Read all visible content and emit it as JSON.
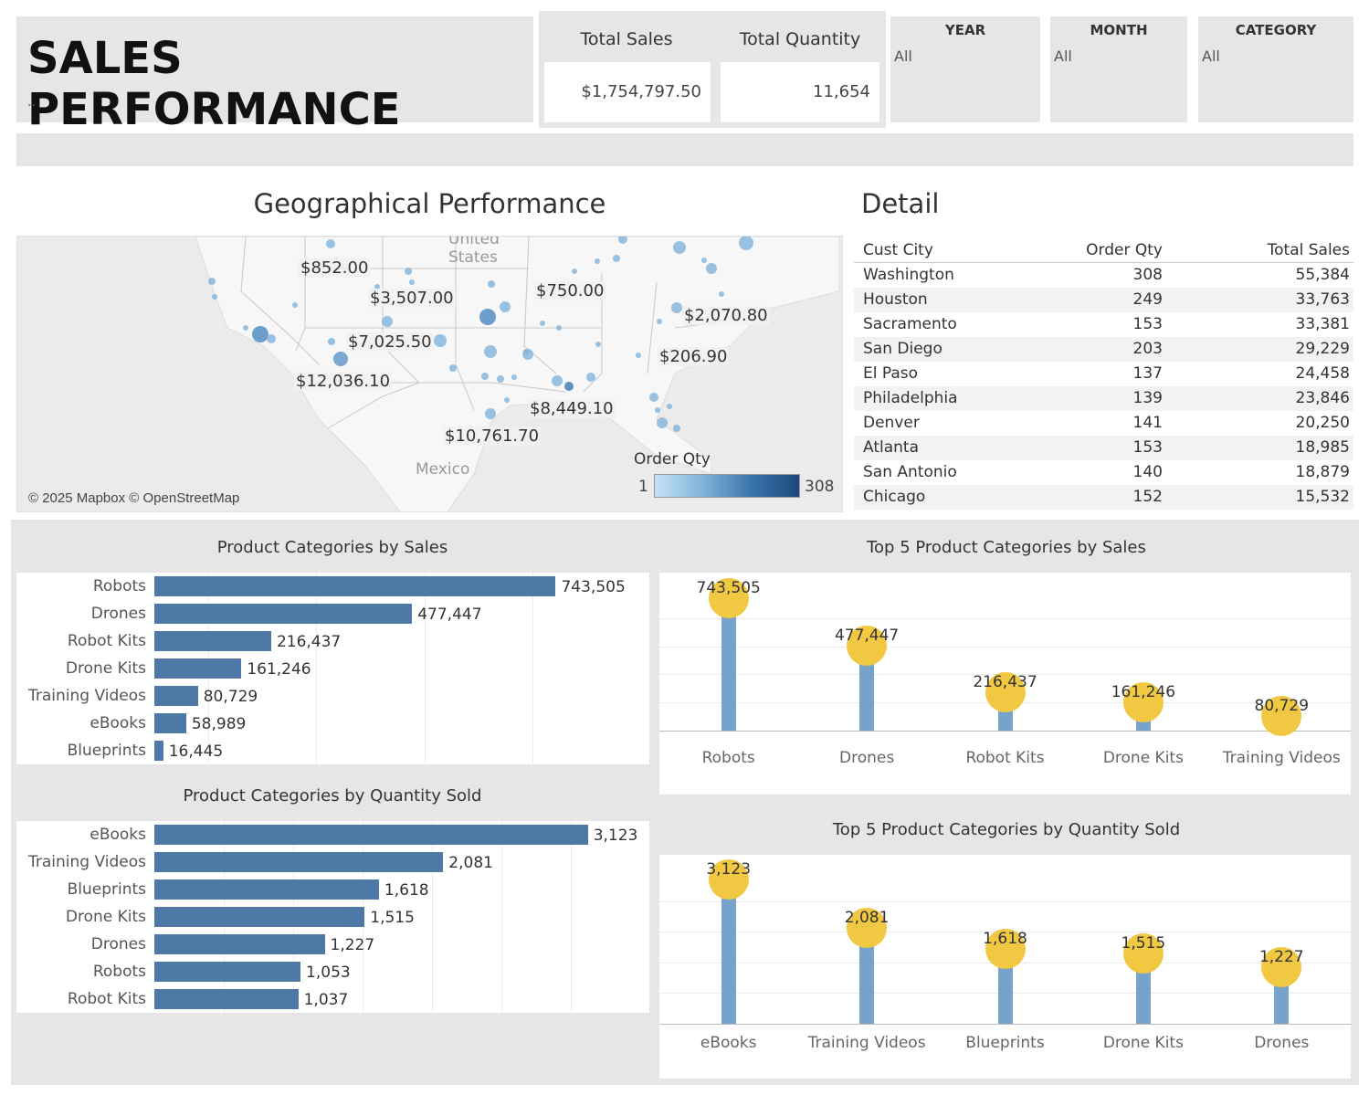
{
  "header": {
    "title": "SALES PERFORMANCE",
    "subtitle": "..",
    "kpis": [
      {
        "label": "Total Sales",
        "value": "$1,754,797.50"
      },
      {
        "label": "Total Quantity",
        "value": "11,654"
      }
    ],
    "filters": [
      {
        "label": "YEAR",
        "value": "All"
      },
      {
        "label": "MONTH",
        "value": "All"
      },
      {
        "label": "CATEGORY",
        "value": "All"
      }
    ]
  },
  "map": {
    "title": "Geographical Performance",
    "labels": [
      "United",
      "States",
      "Mexico"
    ],
    "sales_labels": [
      "$852.00",
      "$3,507.00",
      "$750.00",
      "$7,025.50",
      "$2,070.80",
      "$12,036.10",
      "$206.90",
      "$8,449.10",
      "$10,761.70"
    ],
    "copyright": "© 2025 Mapbox © OpenStreetMap",
    "legend": {
      "title": "Order Qty",
      "min": "1",
      "max": "308",
      "colors": [
        "#c6e3f5",
        "#1b4a7d"
      ]
    }
  },
  "detail": {
    "title": "Detail",
    "columns": [
      "Cust City",
      "Order Qty",
      "Total Sales"
    ],
    "rows": [
      [
        "Washington",
        "308",
        "55,384"
      ],
      [
        "Houston",
        "249",
        "33,763"
      ],
      [
        "Sacramento",
        "153",
        "33,381"
      ],
      [
        "San Diego",
        "203",
        "29,229"
      ],
      [
        "El Paso",
        "137",
        "24,458"
      ],
      [
        "Philadelphia",
        "139",
        "23,846"
      ],
      [
        "Denver",
        "141",
        "20,250"
      ],
      [
        "Atlanta",
        "153",
        "18,985"
      ],
      [
        "San Antonio",
        "140",
        "18,879"
      ],
      [
        "Chicago",
        "152",
        "15,532"
      ]
    ]
  },
  "chart_data": [
    {
      "type": "bar",
      "title": "Product Categories by Sales",
      "orientation": "horizontal",
      "categories": [
        "Robots",
        "Drones",
        "Robot Kits",
        "Drone Kits",
        "Training Videos",
        "eBooks",
        "Blueprints"
      ],
      "values": [
        743505,
        477447,
        216437,
        161246,
        80729,
        58989,
        16445
      ],
      "value_labels": [
        "743,505",
        "477,447",
        "216,437",
        "161,246",
        "80,729",
        "58,989",
        "16,445"
      ],
      "color": "#4e79a7"
    },
    {
      "type": "bar",
      "title": "Product Categories by Quantity Sold",
      "orientation": "horizontal",
      "categories": [
        "eBooks",
        "Training Videos",
        "Blueprints",
        "Drone Kits",
        "Drones",
        "Robots",
        "Robot Kits"
      ],
      "values": [
        3123,
        2081,
        1618,
        1515,
        1227,
        1053,
        1037
      ],
      "value_labels": [
        "3,123",
        "2,081",
        "1,618",
        "1,515",
        "1,227",
        "1,053",
        "1,037"
      ],
      "color": "#4e79a7"
    },
    {
      "type": "lollipop",
      "title": "Top 5 Product Categories by Sales",
      "categories": [
        "Robots",
        "Drones",
        "Robot Kits",
        "Drone Kits",
        "Training Videos"
      ],
      "values": [
        743505,
        477447,
        216437,
        161246,
        80729
      ],
      "value_labels": [
        "743,505",
        "477,447",
        "216,437",
        "161,246",
        "80,729"
      ],
      "colors": {
        "stem": "#75a3cc",
        "dot": "#f0c842"
      }
    },
    {
      "type": "lollipop",
      "title": "Top 5 Product Categories by Quantity Sold",
      "categories": [
        "eBooks",
        "Training Videos",
        "Blueprints",
        "Drone Kits",
        "Drones"
      ],
      "values": [
        3123,
        2081,
        1618,
        1515,
        1227
      ],
      "value_labels": [
        "3,123",
        "2,081",
        "1,618",
        "1,515",
        "1,227"
      ],
      "colors": {
        "stem": "#75a3cc",
        "dot": "#f0c842"
      }
    }
  ]
}
